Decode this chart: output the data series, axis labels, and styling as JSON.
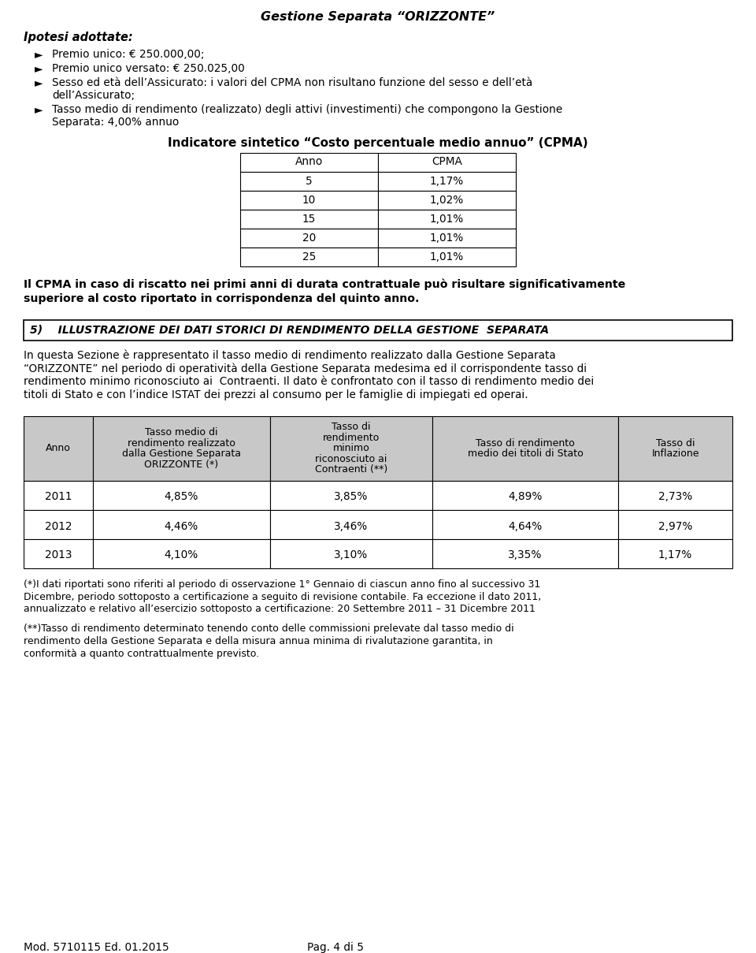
{
  "title": "Gestione Separata “ORIZZONTE”",
  "section_heading": "Ipotesi adottate:",
  "bullet1_line1": "Premio unico: € 250.000,00;",
  "bullet2_line1": "Premio unico versato: € 250.025,00",
  "bullet3_line1": "Sesso ed età dell’Assicurato: i valori del CPMA non risultano funzione del sesso e dell’età",
  "bullet3_line2": "dell’Assicurato;",
  "bullet4_line1": "Tasso medio di rendimento (realizzato) degli attivi (investimenti) che compongono la Gestione",
  "bullet4_line2": "Separata: 4,00% annuo",
  "cpma_title": "Indicatore sintetico “Costo percentuale medio annuo” (CPMA)",
  "cpma_headers": [
    "Anno",
    "CPMA"
  ],
  "cpma_rows": [
    [
      "5",
      "1,17%"
    ],
    [
      "10",
      "1,02%"
    ],
    [
      "15",
      "1,01%"
    ],
    [
      "20",
      "1,01%"
    ],
    [
      "25",
      "1,01%"
    ]
  ],
  "cpma_note_line1": "Il CPMA in caso di riscatto nei primi anni di durata contrattuale può risultare significativamente",
  "cpma_note_line2": "superiore al costo riportato in corrispondenza del quinto anno.",
  "section5_heading": "5)    ILLUSTRAZIONE DEI DATI STORICI DI RENDIMENTO DELLA GESTIONE  SEPARATA",
  "s5_line1": "In questa Sezione è rappresentato il tasso medio di rendimento realizzato dalla Gestione Separata",
  "s5_line2": "“ORIZZONTE” nel periodo di operatività della Gestione Separata medesima ed il corrispondente tasso di",
  "s5_line3": "rendimento minimo riconosciuto ai  Contraenti. Il dato è confrontato con il tasso di rendimento medio dei",
  "s5_line4": "titoli di Stato e con l’indice ISTAT dei prezzi al consumo per le famiglie di impiegati ed operai.",
  "big_table_headers": [
    "Anno",
    "Tasso medio di\nrendimento realizzato\ndalla Gestione Separata\nORIZZONTE (*)",
    "Tasso di\nrendimento\nminimo\nriconosciuto ai\nContraenti (**)",
    "Tasso di rendimento\nmedio dei titoli di Stato",
    "Tasso di\nInflazione"
  ],
  "big_table_rows": [
    [
      "2011",
      "4,85%",
      "3,85%",
      "4,89%",
      "2,73%"
    ],
    [
      "2012",
      "4,46%",
      "3,46%",
      "4,64%",
      "2,97%"
    ],
    [
      "2013",
      "4,10%",
      "3,10%",
      "3,35%",
      "1,17%"
    ]
  ],
  "fn1_l1": "(*)I dati riportati sono riferiti al periodo di osservazione 1° Gennaio di ciascun anno fino al successivo 31",
  "fn1_l2": "Dicembre, periodo sottoposto a certificazione a seguito di revisione contabile. Fa eccezione il dato 2011,",
  "fn1_l3": "annualizzato e relativo all’esercizio sottoposto a certificazione: 20 Settembre 2011 – 31 Dicembre 2011",
  "fn2_l1": "(**)Tasso di rendimento determinato tenendo conto delle commissioni prelevate dal tasso medio di",
  "fn2_l2": "rendimento della Gestione Separata e della misura annua minima di rivalutazione garantita, in",
  "fn2_l3": "conformità a quanto contrattualmente previsto.",
  "footer_left": "Mod. 5710115 Ed. 01.2015",
  "footer_right": "Pag. 4 di 5",
  "font_main": 9.8,
  "font_title": 11.5,
  "font_section": 10.0,
  "font_bold_note": 10.2,
  "table_header_bg": "#c8c8c8",
  "bg_color": "#ffffff"
}
